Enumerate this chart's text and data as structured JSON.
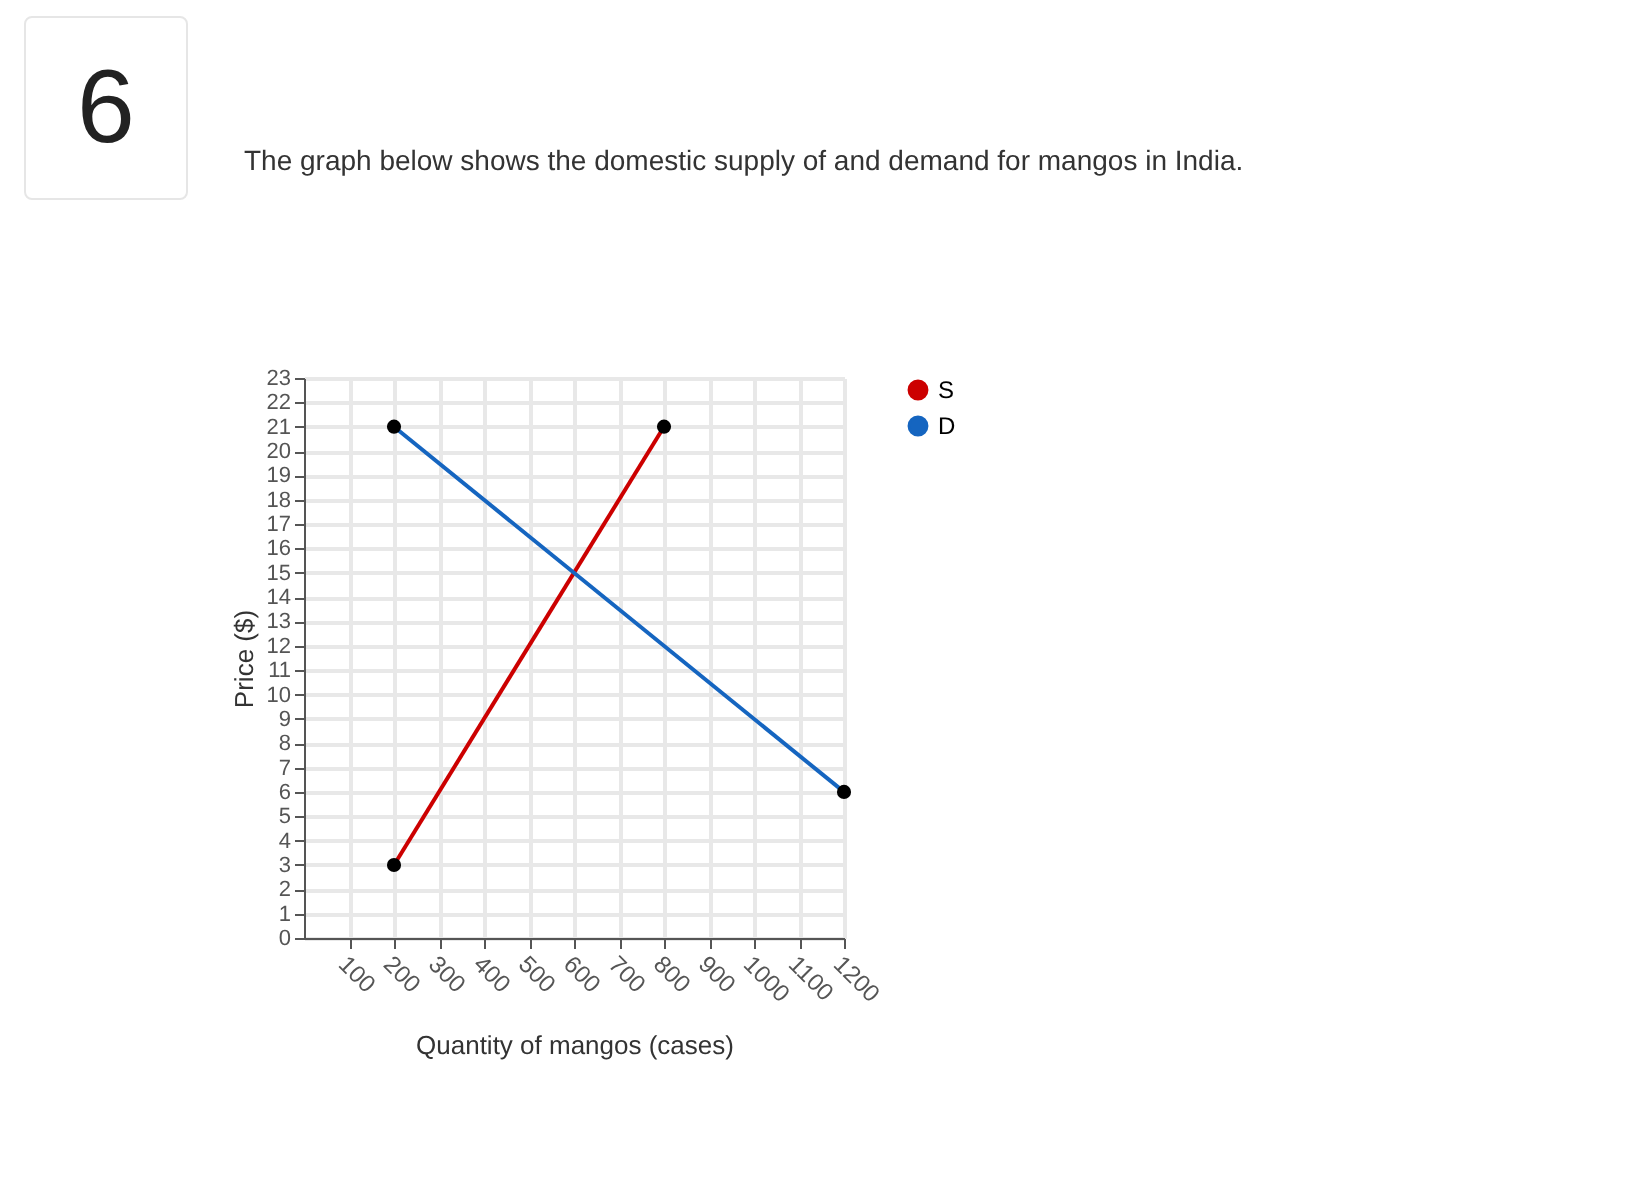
{
  "chart_data": {
    "type": "line",
    "title": "The graph below shows the domestic supply of and demand for mangos in India.",
    "annotations": [
      "6"
    ],
    "xlabel": "Quantity of mangos (cases)",
    "ylabel": "Price ($)",
    "series": [
      {
        "name": "S",
        "color": "#cc0000",
        "x": [
          200,
          800
        ],
        "values": [
          3,
          21
        ]
      },
      {
        "name": "D",
        "color": "#1565c0",
        "x": [
          200,
          1200
        ],
        "values": [
          21,
          6
        ]
      }
    ],
    "xlim": [
      0,
      1200
    ],
    "xticks": [
      100,
      200,
      300,
      400,
      500,
      600,
      700,
      800,
      900,
      1000,
      1100,
      1200
    ],
    "ylim": [
      0,
      23
    ],
    "yticks": [
      0,
      1,
      2,
      3,
      4,
      5,
      6,
      7,
      8,
      9,
      10,
      11,
      12,
      13,
      14,
      15,
      16,
      17,
      18,
      19,
      20,
      21,
      22,
      23
    ],
    "grid": true,
    "marker": "circle",
    "legend": "top right",
    "line_style": "solid"
  }
}
